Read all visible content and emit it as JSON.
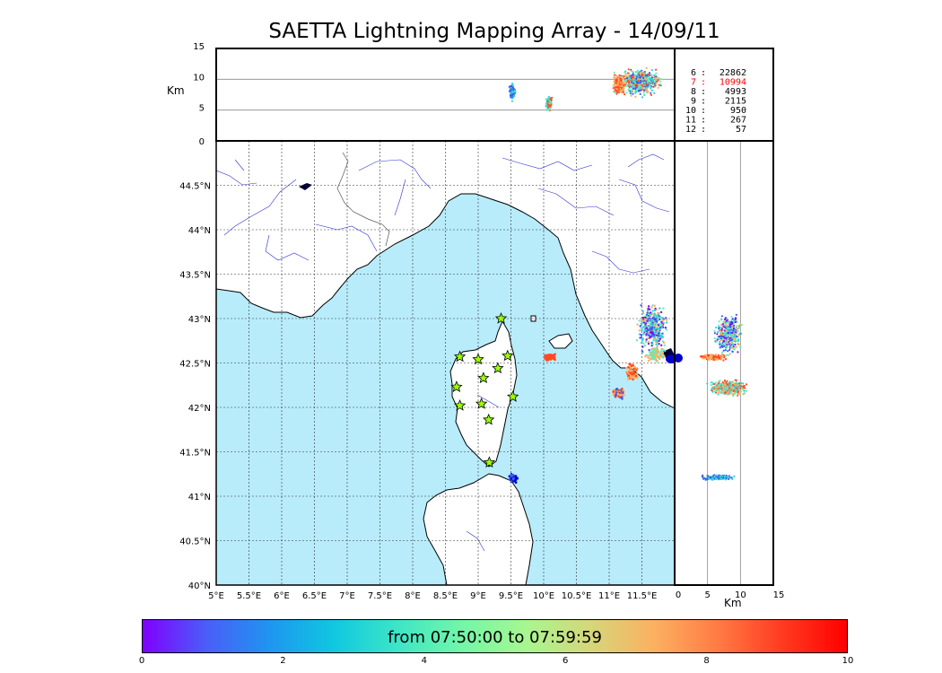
{
  "title": "SAETTA Lightning Mapping Array - 14/09/11",
  "map": {
    "lon_labels": [
      "5°E",
      "5.5°E",
      "6°E",
      "6.5°E",
      "7°E",
      "7.5°E",
      "8°E",
      "8.5°E",
      "9°E",
      "9.5°E",
      "10°E",
      "10.5°E",
      "11°E",
      "11.5°E"
    ],
    "lon_values": [
      5,
      5.5,
      6,
      6.5,
      7,
      7.5,
      8,
      8.5,
      9,
      9.5,
      10,
      10.5,
      11,
      11.5
    ],
    "lat_labels": [
      "40°N",
      "40.5°N",
      "41°N",
      "41.5°N",
      "42°N",
      "42.5°N",
      "43°N",
      "43.5°N",
      "44°N",
      "44.5°N"
    ],
    "lat_values": [
      40,
      40.5,
      41,
      41.5,
      42,
      42.5,
      43,
      43.5,
      44,
      44.5
    ],
    "lon_range": [
      5,
      12
    ],
    "lat_range": [
      40,
      45
    ],
    "sea_color": "#b8ecfb",
    "land_color": "#ffffff",
    "star_color": "#9aff00",
    "stations": [
      {
        "lon": 9.35,
        "lat": 43.0
      },
      {
        "lon": 8.72,
        "lat": 42.57
      },
      {
        "lon": 9.0,
        "lat": 42.54
      },
      {
        "lon": 9.45,
        "lat": 42.58
      },
      {
        "lon": 9.3,
        "lat": 42.44
      },
      {
        "lon": 9.08,
        "lat": 42.33
      },
      {
        "lon": 8.67,
        "lat": 42.23
      },
      {
        "lon": 9.53,
        "lat": 42.12
      },
      {
        "lon": 8.72,
        "lat": 42.02
      },
      {
        "lon": 9.05,
        "lat": 42.04
      },
      {
        "lon": 9.16,
        "lat": 41.86
      },
      {
        "lon": 9.17,
        "lat": 41.38
      }
    ]
  },
  "altitude_top": {
    "unit": "Km",
    "tick_labels": [
      "0",
      "5",
      "10",
      "15"
    ],
    "tick_values": [
      0,
      5,
      10,
      15
    ]
  },
  "altitude_right": {
    "unit": "Km",
    "tick_labels": [
      "0",
      "5",
      "10",
      "15"
    ],
    "tick_values": [
      0,
      5,
      10,
      15
    ]
  },
  "station_counts": [
    {
      "stations": "6",
      "sep": ":",
      "count": "22862",
      "color": "#000000"
    },
    {
      "stations": "7",
      "sep": ":",
      "count": "10994",
      "color": "#ff0000"
    },
    {
      "stations": "8",
      "sep": ":",
      "count": "4993",
      "color": "#000000"
    },
    {
      "stations": "9",
      "sep": ":",
      "count": "2115",
      "color": "#000000"
    },
    {
      "stations": "10",
      "sep": ":",
      "count": "950",
      "color": "#000000"
    },
    {
      "stations": "11",
      "sep": ":",
      "count": "267",
      "color": "#000000"
    },
    {
      "stations": "12",
      "sep": ":",
      "count": "57",
      "color": "#000000"
    }
  ],
  "colorbar": {
    "label": "from 07:50:00 to 07:59:59",
    "tick_labels": [
      "0",
      "2",
      "4",
      "6",
      "8",
      "10"
    ],
    "tick_values": [
      0,
      2,
      4,
      6,
      8,
      10
    ]
  },
  "colors": {
    "purple": "#7a10f0",
    "blue": "#3a5cf6",
    "cyan": "#36d2d8",
    "teal": "#5cf0c0",
    "orange": "#fcb060",
    "red": "#ff4a24",
    "navy": "#0000cc"
  }
}
